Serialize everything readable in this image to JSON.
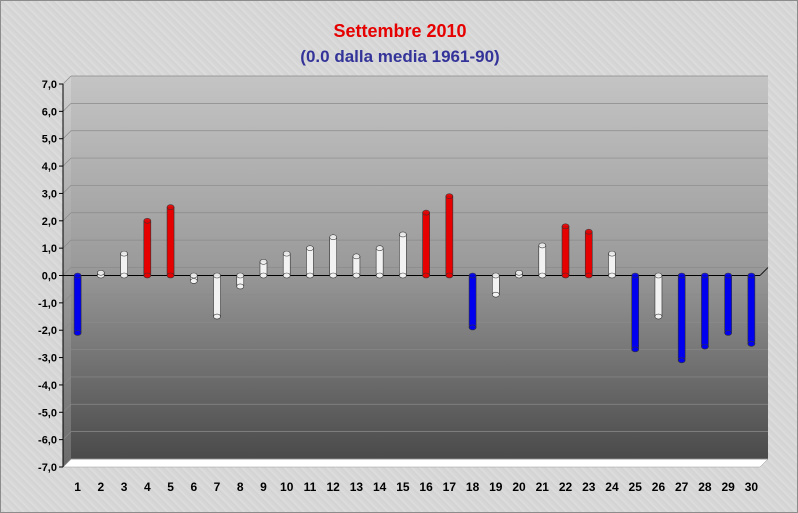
{
  "chart_data": {
    "type": "bar",
    "title": "Settembre 2010",
    "subtitle": "(0.0 dalla media 1961-90)",
    "xlabel": "",
    "ylabel": "",
    "ylim": [
      -7,
      7
    ],
    "ytick_step": 1,
    "yticks": [
      "7,0",
      "6,0",
      "5,0",
      "4,0",
      "3,0",
      "2,0",
      "1,0",
      "0,0",
      "-1,0",
      "-2,0",
      "-3,0",
      "-4,0",
      "-5,0",
      "-6,0",
      "-7,0"
    ],
    "categories": [
      "1",
      "2",
      "3",
      "4",
      "5",
      "6",
      "7",
      "8",
      "9",
      "10",
      "11",
      "12",
      "13",
      "14",
      "15",
      "16",
      "17",
      "18",
      "19",
      "20",
      "21",
      "22",
      "23",
      "24",
      "25",
      "26",
      "27",
      "28",
      "29",
      "30"
    ],
    "values": [
      -2.1,
      0.1,
      0.8,
      2.0,
      2.5,
      -0.2,
      -1.5,
      -0.4,
      0.5,
      0.8,
      1.0,
      1.4,
      0.7,
      1.0,
      1.5,
      2.3,
      2.9,
      -1.9,
      -0.7,
      0.1,
      1.1,
      1.8,
      1.6,
      0.8,
      -2.7,
      -1.5,
      -3.1,
      -2.6,
      -2.1,
      -2.5
    ],
    "colors": {
      "above": "#e60000",
      "below": "#0000ee",
      "near": "#f2f2f2",
      "title": "#e60000",
      "subtitle": "#333399"
    },
    "near_threshold": 1.6,
    "grid": true,
    "legend": "none"
  }
}
